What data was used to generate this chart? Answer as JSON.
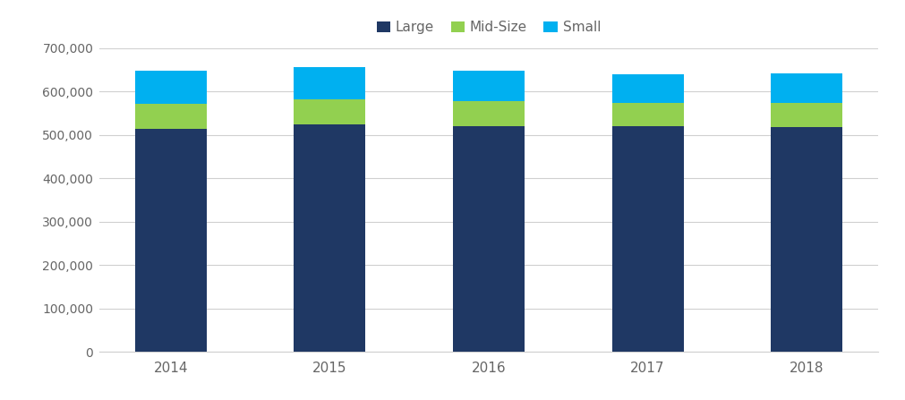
{
  "years": [
    "2014",
    "2015",
    "2016",
    "2017",
    "2018"
  ],
  "large": [
    514000,
    524000,
    519000,
    519000,
    518000
  ],
  "mid_size": [
    57000,
    57000,
    59000,
    55000,
    55000
  ],
  "small": [
    76000,
    74000,
    70000,
    65000,
    68000
  ],
  "colors": {
    "large": "#1F3864",
    "mid_size": "#92D050",
    "small": "#00B0F0"
  },
  "legend_labels": [
    "Large",
    "Mid-Size",
    "Small"
  ],
  "ylim": [
    0,
    700000
  ],
  "yticks": [
    0,
    100000,
    200000,
    300000,
    400000,
    500000,
    600000,
    700000
  ],
  "bar_width": 0.45,
  "background_color": "#ffffff",
  "grid_color": "#d0d0d0",
  "font_color": "#666666"
}
